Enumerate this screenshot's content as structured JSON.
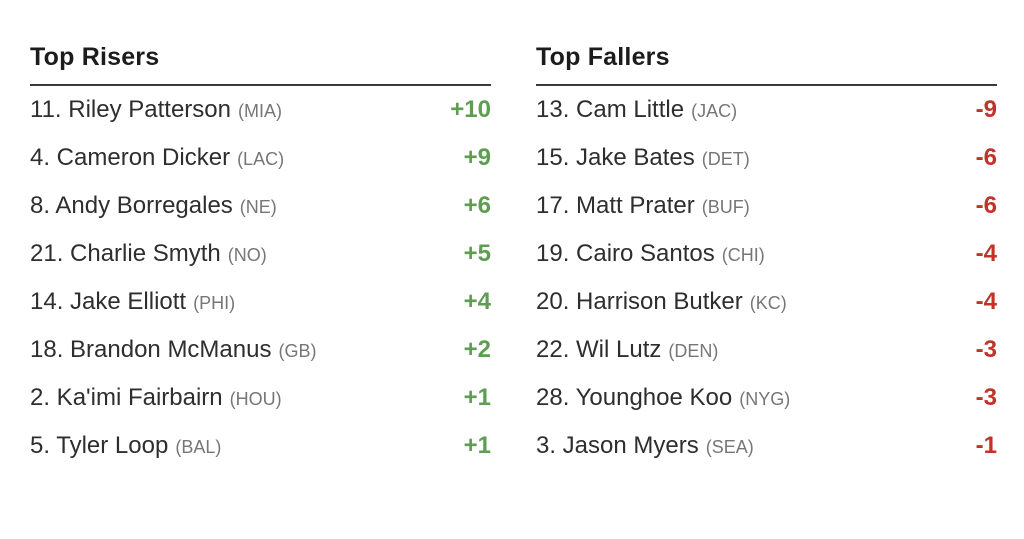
{
  "colors": {
    "riser": "#5d9e52",
    "faller": "#c03428",
    "text": "#2e2e2e",
    "team": "#767676",
    "header": "#1c1c1c",
    "rule": "#3a3a3a"
  },
  "columns": [
    {
      "title": "Top Risers",
      "rows": [
        {
          "label": "11. Riley Patterson",
          "team": "(MIA)",
          "delta": "+10"
        },
        {
          "label": "4. Cameron Dicker",
          "team": "(LAC)",
          "delta": "+9"
        },
        {
          "label": "8. Andy Borregales",
          "team": "(NE)",
          "delta": "+6"
        },
        {
          "label": "21. Charlie Smyth",
          "team": "(NO)",
          "delta": "+5"
        },
        {
          "label": "14. Jake Elliott",
          "team": "(PHI)",
          "delta": "+4"
        },
        {
          "label": "18. Brandon McManus",
          "team": "(GB)",
          "delta": "+2"
        },
        {
          "label": "2. Ka'imi Fairbairn",
          "team": "(HOU)",
          "delta": "+1"
        },
        {
          "label": "5. Tyler Loop",
          "team": "(BAL)",
          "delta": "+1"
        }
      ]
    },
    {
      "title": "Top Fallers",
      "rows": [
        {
          "label": "13. Cam Little",
          "team": "(JAC)",
          "delta": "-9"
        },
        {
          "label": "15. Jake Bates",
          "team": "(DET)",
          "delta": "-6"
        },
        {
          "label": "17. Matt Prater",
          "team": "(BUF)",
          "delta": "-6"
        },
        {
          "label": "19. Cairo Santos",
          "team": "(CHI)",
          "delta": "-4"
        },
        {
          "label": "20. Harrison Butker",
          "team": "(KC)",
          "delta": "-4"
        },
        {
          "label": "22. Wil Lutz",
          "team": "(DEN)",
          "delta": "-3"
        },
        {
          "label": "28. Younghoe Koo",
          "team": "(NYG)",
          "delta": "-3"
        },
        {
          "label": "3. Jason Myers",
          "team": "(SEA)",
          "delta": "-1"
        }
      ]
    }
  ]
}
